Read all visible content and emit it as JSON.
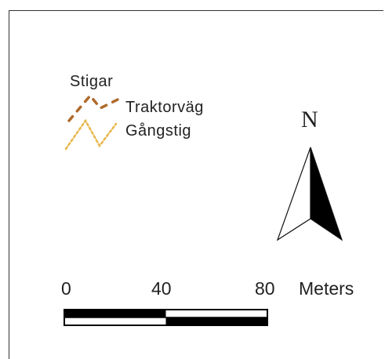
{
  "legend": {
    "title": "Stigar",
    "items": [
      {
        "label": "Traktorväg",
        "color": "#b06a2c",
        "style": "dashed"
      },
      {
        "label": "Gångstig",
        "color": "#e8b64a",
        "style": "dotted"
      }
    ]
  },
  "north_arrow": {
    "letter": "N"
  },
  "scale_bar": {
    "ticks": [
      "0",
      "40",
      "80"
    ],
    "unit": "Meters"
  }
}
